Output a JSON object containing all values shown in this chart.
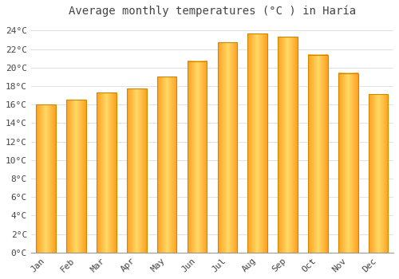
{
  "title": "Average monthly temperatures (°C ) in Haría",
  "months": [
    "Jan",
    "Feb",
    "Mar",
    "Apr",
    "May",
    "Jun",
    "Jul",
    "Aug",
    "Sep",
    "Oct",
    "Nov",
    "Dec"
  ],
  "values": [
    16.0,
    16.5,
    17.3,
    17.7,
    19.0,
    20.7,
    22.7,
    23.7,
    23.3,
    21.4,
    19.4,
    17.1
  ],
  "bar_color_center": "#FFD966",
  "bar_color_edge": "#FFA020",
  "bar_outline": "#CC8800",
  "ylim": [
    0,
    25
  ],
  "yticks": [
    0,
    2,
    4,
    6,
    8,
    10,
    12,
    14,
    16,
    18,
    20,
    22,
    24
  ],
  "ytick_labels": [
    "0°C",
    "2°C",
    "4°C",
    "6°C",
    "8°C",
    "10°C",
    "12°C",
    "14°C",
    "16°C",
    "18°C",
    "20°C",
    "22°C",
    "24°C"
  ],
  "background_color": "#FFFFFF",
  "grid_color": "#DDDDDD",
  "title_fontsize": 10,
  "tick_fontsize": 8,
  "font_color": "#444444"
}
